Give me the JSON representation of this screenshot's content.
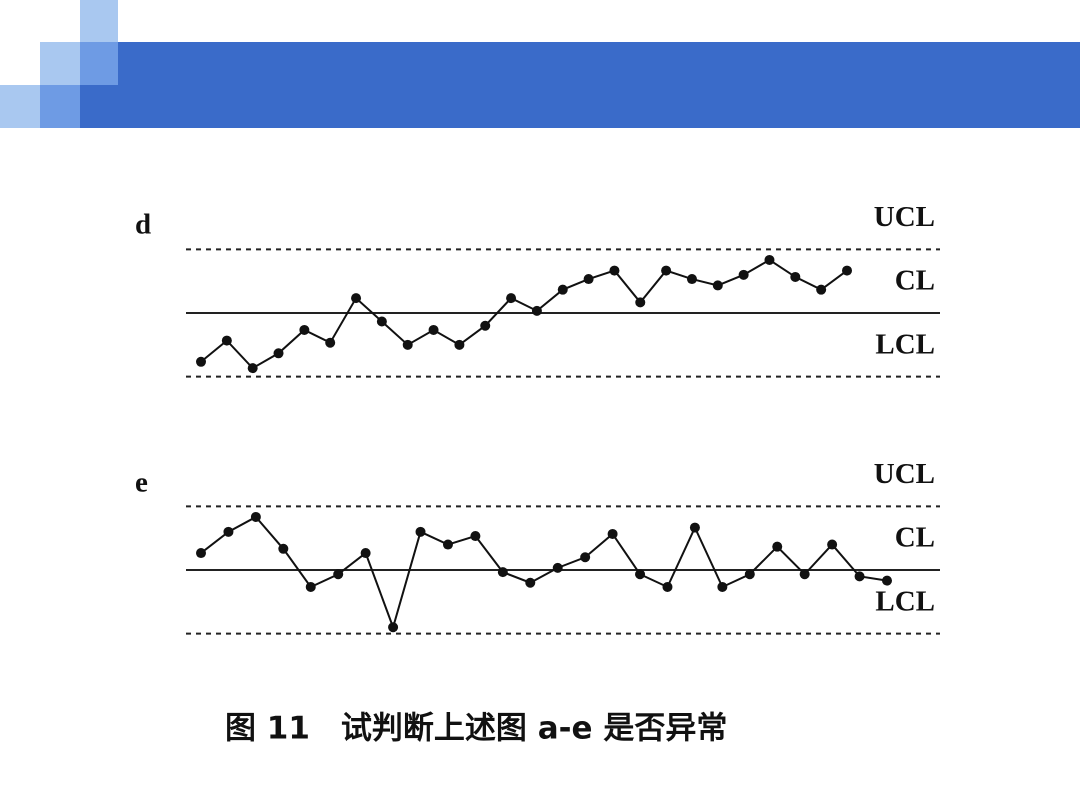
{
  "caption": "图 11　试判断上述图 a-e 是否异常",
  "chart_data": [
    {
      "type": "line",
      "title": "d",
      "color": "#111111",
      "ylim": [
        -3.3,
        3.3
      ],
      "control_lines": [
        {
          "label": "UCL",
          "value": 3,
          "dash": true
        },
        {
          "label": "CL",
          "value": 0,
          "dash": false
        },
        {
          "label": "LCL",
          "value": -3,
          "dash": true
        }
      ],
      "values": [
        -2.3,
        -1.3,
        -2.6,
        -1.9,
        -0.8,
        -1.4,
        0.7,
        -0.4,
        -1.5,
        -0.8,
        -1.5,
        -0.6,
        0.7,
        0.1,
        1.1,
        1.6,
        2.0,
        0.5,
        2.0,
        1.6,
        1.3,
        1.8,
        2.5,
        1.7,
        1.1,
        2.0
      ]
    },
    {
      "type": "line",
      "title": "e",
      "color": "#111111",
      "ylim": [
        -3.3,
        3.3
      ],
      "control_lines": [
        {
          "label": "UCL",
          "value": 3,
          "dash": true
        },
        {
          "label": "CL",
          "value": 0,
          "dash": false
        },
        {
          "label": "LCL",
          "value": -3,
          "dash": true
        }
      ],
      "values": [
        0.8,
        1.8,
        2.5,
        1.0,
        -0.8,
        -0.2,
        0.8,
        -2.7,
        1.8,
        1.2,
        1.6,
        -0.1,
        -0.6,
        0.1,
        0.6,
        1.7,
        -0.2,
        -0.8,
        2.0,
        -0.8,
        -0.2,
        1.1,
        -0.2,
        1.2,
        -0.3,
        -0.5
      ]
    }
  ]
}
